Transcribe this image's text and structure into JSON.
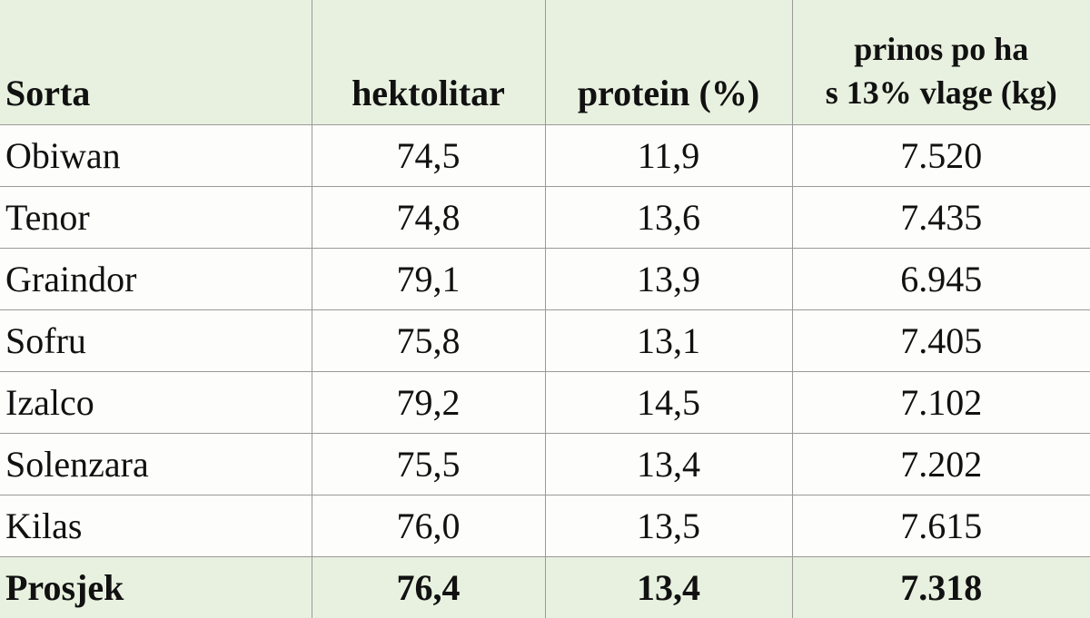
{
  "table": {
    "header": [
      "Sorta",
      "hektolitar",
      "protein (%)",
      [
        "prinos po ha",
        "s 13% vlage (kg)"
      ]
    ],
    "rows": [
      [
        "Obiwan",
        "74,5",
        "11,9",
        "7.520"
      ],
      [
        "Tenor",
        "74,8",
        "13,6",
        "7.435"
      ],
      [
        "Graindor",
        "79,1",
        "13,9",
        "6.945"
      ],
      [
        "Sofru",
        "75,8",
        "13,1",
        "7.405"
      ],
      [
        "Izalco",
        "79,2",
        "14,5",
        "7.102"
      ],
      [
        "Solenzara",
        "75,5",
        "13,4",
        "7.202"
      ],
      [
        "Kilas",
        "76,0",
        "13,5",
        "7.615"
      ]
    ],
    "footer": [
      "Prosjek",
      "76,4",
      "13,4",
      "7.318"
    ]
  }
}
